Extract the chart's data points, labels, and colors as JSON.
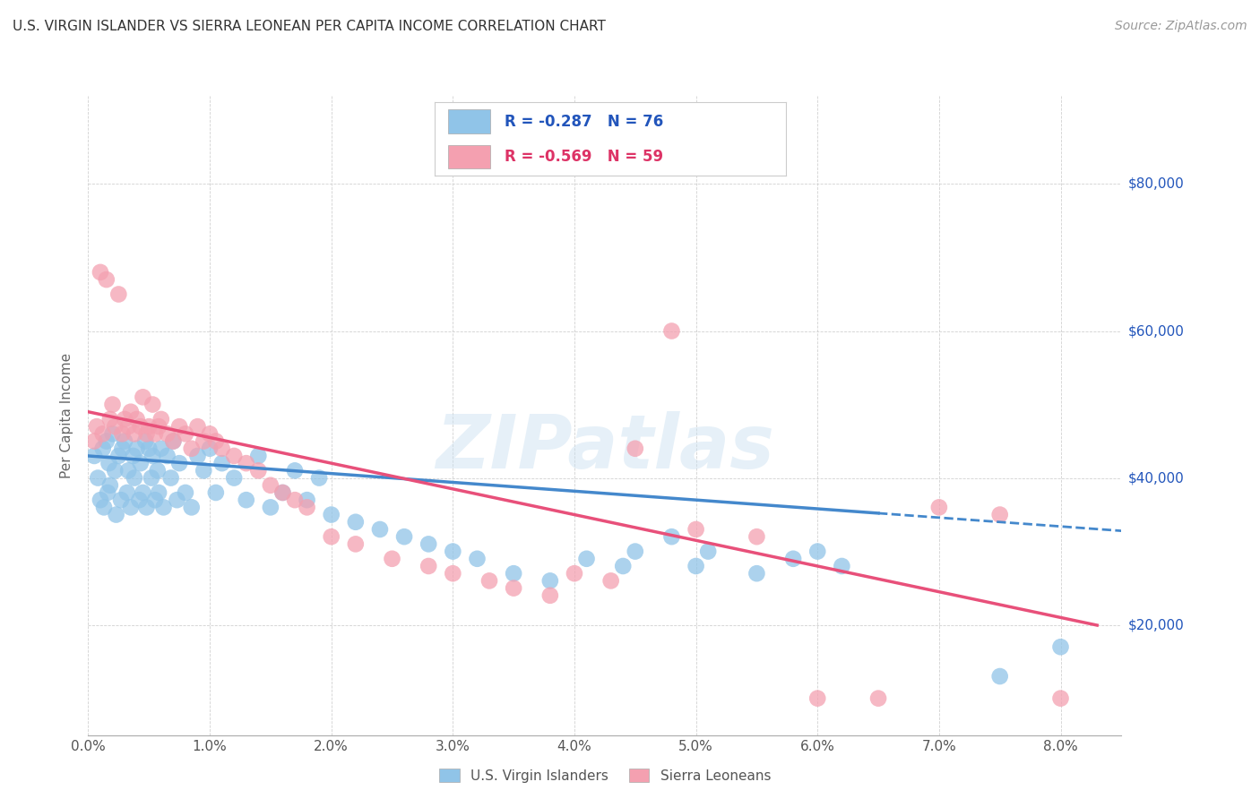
{
  "title": "U.S. VIRGIN ISLANDER VS SIERRA LEONEAN PER CAPITA INCOME CORRELATION CHART",
  "source": "Source: ZipAtlas.com",
  "ylabel": "Per Capita Income",
  "ytick_vals": [
    20000,
    40000,
    60000,
    80000
  ],
  "ytick_labels": [
    "$20,000",
    "$40,000",
    "$60,000",
    "$80,000"
  ],
  "ylim": [
    5000,
    92000
  ],
  "xlim": [
    0.0,
    8.5
  ],
  "blue_color": "#90c4e8",
  "pink_color": "#f4a0b0",
  "blue_line_color": "#4488cc",
  "pink_line_color": "#e8507a",
  "legend_blue_color": "#2255bb",
  "legend_pink_color": "#dd3366",
  "legend1_text": "R = -0.287   N = 76",
  "legend2_text": "R = -0.569   N = 59",
  "watermark": "ZIPatlas",
  "label_blue": "U.S. Virgin Islanders",
  "label_pink": "Sierra Leoneans",
  "blue_x": [
    0.05,
    0.08,
    0.1,
    0.12,
    0.13,
    0.15,
    0.16,
    0.17,
    0.18,
    0.2,
    0.22,
    0.23,
    0.25,
    0.27,
    0.28,
    0.3,
    0.32,
    0.33,
    0.35,
    0.37,
    0.38,
    0.4,
    0.42,
    0.43,
    0.45,
    0.47,
    0.48,
    0.5,
    0.52,
    0.53,
    0.55,
    0.57,
    0.58,
    0.6,
    0.62,
    0.65,
    0.68,
    0.7,
    0.73,
    0.75,
    0.8,
    0.85,
    0.9,
    0.95,
    1.0,
    1.05,
    1.1,
    1.2,
    1.3,
    1.4,
    1.5,
    1.6,
    1.7,
    1.8,
    1.9,
    2.0,
    2.2,
    2.4,
    2.6,
    2.8,
    3.0,
    3.2,
    3.5,
    3.8,
    4.1,
    4.4,
    4.8,
    5.1,
    5.5,
    5.8,
    6.0,
    6.2,
    4.5,
    5.0,
    7.5,
    8.0
  ],
  "blue_y": [
    43000,
    40000,
    37000,
    44000,
    36000,
    45000,
    38000,
    42000,
    39000,
    46000,
    41000,
    35000,
    43000,
    37000,
    44000,
    45000,
    38000,
    41000,
    36000,
    43000,
    40000,
    44000,
    37000,
    42000,
    38000,
    45000,
    36000,
    44000,
    40000,
    43000,
    37000,
    41000,
    38000,
    44000,
    36000,
    43000,
    40000,
    45000,
    37000,
    42000,
    38000,
    36000,
    43000,
    41000,
    44000,
    38000,
    42000,
    40000,
    37000,
    43000,
    36000,
    38000,
    41000,
    37000,
    40000,
    35000,
    34000,
    33000,
    32000,
    31000,
    30000,
    29000,
    27000,
    26000,
    29000,
    28000,
    32000,
    30000,
    27000,
    29000,
    30000,
    28000,
    30000,
    28000,
    13000,
    17000
  ],
  "pink_x": [
    0.05,
    0.07,
    0.1,
    0.12,
    0.15,
    0.18,
    0.2,
    0.22,
    0.25,
    0.28,
    0.3,
    0.33,
    0.35,
    0.38,
    0.4,
    0.43,
    0.45,
    0.48,
    0.5,
    0.53,
    0.55,
    0.58,
    0.6,
    0.65,
    0.7,
    0.75,
    0.8,
    0.85,
    0.9,
    0.95,
    1.0,
    1.05,
    1.1,
    1.2,
    1.3,
    1.4,
    1.5,
    1.6,
    1.7,
    1.8,
    2.0,
    2.2,
    2.5,
    2.8,
    3.0,
    3.3,
    3.5,
    3.8,
    4.0,
    4.3,
    4.5,
    5.0,
    5.5,
    6.0,
    6.5,
    7.0,
    7.5,
    8.0,
    4.8
  ],
  "pink_y": [
    45000,
    47000,
    68000,
    46000,
    67000,
    48000,
    50000,
    47000,
    65000,
    46000,
    48000,
    47000,
    49000,
    46000,
    48000,
    47000,
    51000,
    46000,
    47000,
    50000,
    46000,
    47000,
    48000,
    46000,
    45000,
    47000,
    46000,
    44000,
    47000,
    45000,
    46000,
    45000,
    44000,
    43000,
    42000,
    41000,
    39000,
    38000,
    37000,
    36000,
    32000,
    31000,
    29000,
    28000,
    27000,
    26000,
    25000,
    24000,
    27000,
    26000,
    44000,
    33000,
    32000,
    10000,
    10000,
    36000,
    35000,
    10000,
    60000
  ]
}
